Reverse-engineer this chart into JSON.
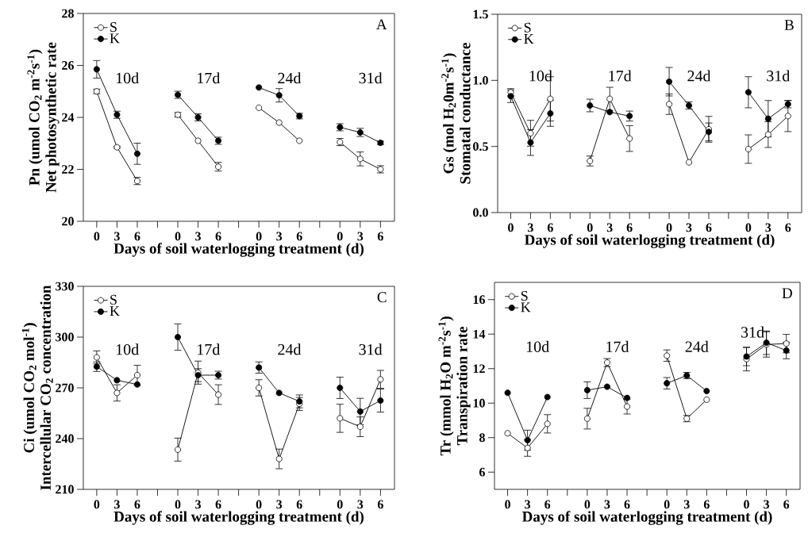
{
  "chart_data": [
    {
      "type": "line",
      "title": "A",
      "ylabel": [
        "Pn (umol CO$_{2}$ m$^{-2}$s$^{-1}$)",
        "Net photosynthetic rate"
      ],
      "xlabel": "Days of soil waterlogging treatment (d)",
      "categories": [
        "0",
        "3",
        "6",
        null,
        "0",
        "3",
        "6",
        null,
        "0",
        "3",
        "6",
        null,
        "0",
        "3",
        "6"
      ],
      "ylim": [
        20,
        28
      ],
      "yticks": [
        20,
        22,
        24,
        26,
        28
      ],
      "legend": "top left",
      "marker": "circle",
      "annotations": [
        "10d",
        "17d",
        "24d",
        "31d"
      ],
      "series": [
        {
          "name": "S",
          "color": "#000000",
          "values": [
            25.0,
            22.85,
            21.55,
            null,
            24.1,
            23.1,
            22.1,
            null,
            24.37,
            23.8,
            23.1,
            null,
            23.05,
            22.4,
            22.0
          ],
          "errors": [
            0.1,
            0.05,
            0.15,
            null,
            0.1,
            null,
            0.18,
            null,
            null,
            null,
            null,
            null,
            0.15,
            0.28,
            0.15
          ]
        },
        {
          "name": "K",
          "color": "#000000",
          "values": [
            25.85,
            24.1,
            22.6,
            null,
            24.87,
            24.0,
            23.1,
            null,
            25.15,
            24.85,
            24.05,
            null,
            23.62,
            23.42,
            23.02
          ],
          "errors": [
            0.35,
            0.15,
            0.42,
            null,
            0.15,
            0.15,
            0.15,
            null,
            null,
            0.27,
            0.12,
            null,
            0.15,
            0.17,
            0.08
          ]
        }
      ]
    },
    {
      "type": "line",
      "title": "B",
      "ylabel": [
        "Gs  (mol H$_{2}$0m$^{-2}$s$^{-1}$)",
        "Stomatal conductance"
      ],
      "xlabel": "Days of soil waterlogging treatment (d)",
      "categories": [
        "0",
        "3",
        "6",
        null,
        "0",
        "3",
        "6",
        null,
        "0",
        "3",
        "6",
        null,
        "0",
        "3",
        "6"
      ],
      "ylim": [
        0,
        1.5
      ],
      "yticks": [
        {
          "value": 0,
          "label": "0.0"
        },
        0.5,
        {
          "value": 1,
          "label": "1.0"
        },
        1.5
      ],
      "legend": "top left",
      "marker": "circle",
      "annotations": [
        "10d",
        "17d",
        "24d",
        "31d"
      ],
      "series": [
        {
          "name": "S",
          "color": "#000000",
          "values": [
            0.91,
            0.6,
            0.86,
            null,
            0.39,
            0.86,
            0.56,
            null,
            0.82,
            0.38,
            0.63,
            null,
            0.48,
            0.59,
            0.73
          ],
          "errors": [
            0.03,
            0.1,
            0.17,
            null,
            0.04,
            0.09,
            0.1,
            null,
            0.08,
            null,
            0.1,
            null,
            0.11,
            0.1,
            0.12
          ]
        },
        {
          "name": "K",
          "color": "#000000",
          "values": [
            0.88,
            0.53,
            0.75,
            null,
            0.81,
            0.76,
            0.73,
            null,
            0.99,
            0.81,
            0.61,
            null,
            0.91,
            0.71,
            0.82
          ],
          "errors": [
            0.05,
            0.1,
            0.1,
            null,
            0.05,
            null,
            0.04,
            null,
            0.11,
            0.03,
            0.07,
            null,
            0.12,
            0.14,
            0.03
          ]
        }
      ]
    },
    {
      "type": "line",
      "title": "C",
      "ylabel": [
        "Ci (umol CO$_{2}$ mol$^{-1}$)",
        "Intercellular CO$_{2}$ concentration"
      ],
      "xlabel": "Days of soil waterlogging treatment (d)",
      "categories": [
        "0",
        "3",
        "6",
        null,
        "0",
        "3",
        "6",
        null,
        "0",
        "3",
        "6",
        null,
        "0",
        "3",
        "6"
      ],
      "ylim": [
        210,
        330
      ],
      "yticks": [
        210,
        240,
        270,
        300,
        330
      ],
      "legend": "top left",
      "marker": "circle",
      "annotations": [
        "10d",
        "17d",
        "24d",
        "31d"
      ],
      "series": [
        {
          "name": "S",
          "color": "#000000",
          "values": [
            288,
            267,
            277.5,
            null,
            233.5,
            279,
            266,
            null,
            270,
            228,
            260.5,
            null,
            252,
            247,
            275
          ],
          "errors": [
            4,
            5,
            6,
            null,
            7,
            7,
            6,
            null,
            5,
            6,
            4,
            null,
            8.5,
            6,
            5.5
          ]
        },
        {
          "name": "K",
          "color": "#000000",
          "values": [
            282.5,
            274.5,
            272,
            null,
            300,
            277.5,
            277.5,
            null,
            282,
            267,
            262,
            null,
            270,
            256,
            262.5
          ],
          "errors": [
            3,
            null,
            null,
            null,
            8,
            4,
            2.5,
            null,
            3.5,
            null,
            4,
            null,
            6.5,
            8,
            7
          ]
        }
      ]
    },
    {
      "type": "line",
      "title": "D",
      "ylabel": [
        "Tr (mmol H$_{2}$O m$^{-2}$s$^{-1}$)",
        "Transpiration rate"
      ],
      "xlabel": "Days of soil waterlogging treatment (d)",
      "categories": [
        "0",
        "3",
        "6",
        null,
        "0",
        "3",
        "6",
        null,
        "0",
        "3",
        "6",
        null,
        "0",
        "3",
        "6"
      ],
      "ylim": [
        5,
        17
      ],
      "yticks": [
        6,
        8,
        10,
        12,
        14,
        16
      ],
      "legend": "top left",
      "marker": "circle",
      "annotations": [
        "10d",
        "17d",
        "24d",
        "31d"
      ],
      "series": [
        {
          "name": "S",
          "color": "#000000",
          "values": [
            8.25,
            7.4,
            8.8,
            null,
            9.1,
            12.35,
            9.8,
            null,
            12.75,
            9.1,
            10.2,
            null,
            12.55,
            13.4,
            13.45
          ],
          "errors": [
            null,
            0.5,
            0.55,
            null,
            0.62,
            0.25,
            0.45,
            null,
            0.35,
            0.2,
            null,
            null,
            0.7,
            0.75,
            0.55
          ]
        },
        {
          "name": "K",
          "color": "#000000",
          "values": [
            10.6,
            7.85,
            10.35,
            null,
            10.75,
            10.95,
            10.3,
            null,
            11.15,
            11.6,
            10.7,
            null,
            12.7,
            13.5,
            13.05
          ],
          "errors": [
            null,
            0.6,
            null,
            null,
            0.5,
            null,
            null,
            null,
            0.35,
            0.2,
            null,
            null,
            0.55,
            0.7,
            0.5
          ]
        }
      ]
    }
  ]
}
